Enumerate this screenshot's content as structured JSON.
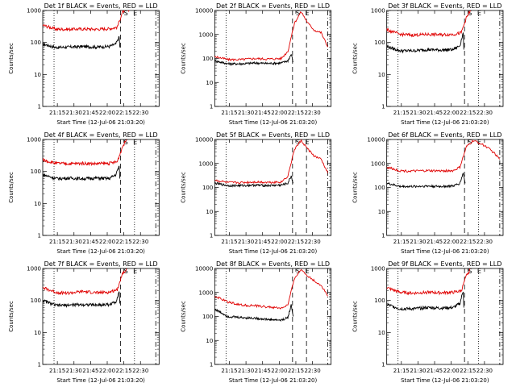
{
  "page": {
    "background": "#ffffff",
    "ink": "#000000",
    "events_color": "#000000",
    "lld_color": "#e00000"
  },
  "chart_data": [
    {
      "type": "line",
      "title": "Det 1f BLACK = Events, RED = LLD",
      "ylabel": "Counts/sec",
      "xlabel": "Start Time (12-Jul-06 21:03:20)",
      "yscale": "log",
      "ylim": [
        1,
        1000
      ],
      "xlim": [
        21.0,
        22.75
      ],
      "xticks": [
        "21:15",
        "21:30",
        "21:45",
        "22:00",
        "22:15",
        "22:30"
      ],
      "yticks": [
        "1",
        "10",
        "100",
        "1000"
      ],
      "flags": [
        "S",
        "E"
      ],
      "vlines": [
        {
          "x": 21.17,
          "style": "dotted"
        },
        {
          "x": 22.17,
          "style": "dashed"
        },
        {
          "x": 22.38,
          "style": "dotted"
        },
        {
          "x": 22.7,
          "style": "dashdot"
        }
      ],
      "series": [
        {
          "name": "Events",
          "color": "#000000",
          "x": [
            21.0,
            21.2,
            21.4,
            21.6,
            21.8,
            22.0,
            22.1,
            22.15,
            22.16
          ],
          "y": [
            90,
            70,
            72,
            75,
            72,
            75,
            90,
            150,
            70
          ]
        },
        {
          "name": "LLD",
          "color": "#e00000",
          "x": [
            21.0,
            21.2,
            21.4,
            21.6,
            21.8,
            22.0,
            22.12,
            22.2,
            22.26,
            22.3
          ],
          "y": [
            350,
            260,
            260,
            265,
            260,
            270,
            300,
            900,
            1000,
            1000
          ]
        }
      ]
    },
    {
      "type": "line",
      "title": "Det 2f BLACK = Events, RED = LLD",
      "ylabel": "Counts/sec",
      "xlabel": "Start Time (12-Jul-06 21:03:20)",
      "yscale": "log",
      "ylim": [
        1,
        10000
      ],
      "xlim": [
        21.0,
        22.75
      ],
      "xticks": [
        "21:15",
        "21:30",
        "21:45",
        "22:00",
        "22:15",
        "22:30"
      ],
      "yticks": [
        "1",
        "10",
        "100",
        "1000",
        "10000"
      ],
      "flags": [
        "S",
        "E"
      ],
      "vlines": [
        {
          "x": 21.17,
          "style": "dotted"
        },
        {
          "x": 22.17,
          "style": "dashed"
        },
        {
          "x": 22.38,
          "style": "dashed"
        },
        {
          "x": 22.7,
          "style": "dashdot"
        }
      ],
      "series": [
        {
          "name": "Events",
          "color": "#000000",
          "x": [
            21.0,
            21.2,
            21.4,
            21.6,
            21.8,
            22.0,
            22.1,
            22.15,
            22.18
          ],
          "y": [
            80,
            60,
            60,
            65,
            62,
            65,
            80,
            150,
            70
          ]
        },
        {
          "name": "LLD",
          "color": "#e00000",
          "x": [
            21.0,
            21.2,
            21.4,
            21.6,
            21.8,
            22.0,
            22.1,
            22.2,
            22.3,
            22.4,
            22.5,
            22.6,
            22.7
          ],
          "y": [
            120,
            90,
            90,
            100,
            95,
            100,
            200,
            3000,
            9000,
            3000,
            1500,
            1200,
            300
          ]
        }
      ]
    },
    {
      "type": "line",
      "title": "Det 3f BLACK = Events, RED = LLD",
      "ylabel": "Counts/sec",
      "xlabel": "Start Time (12-Jul-06 21:03:20)",
      "yscale": "log",
      "ylim": [
        1,
        1000
      ],
      "xlim": [
        21.0,
        22.75
      ],
      "xticks": [
        "21:15",
        "21:30",
        "21:45",
        "22:00",
        "22:15",
        "22:30"
      ],
      "yticks": [
        "1",
        "10",
        "100",
        "1000"
      ],
      "flags": [
        "S",
        "E"
      ],
      "vlines": [
        {
          "x": 21.17,
          "style": "dotted"
        },
        {
          "x": 22.17,
          "style": "dashed"
        },
        {
          "x": 22.38,
          "style": "dotted"
        },
        {
          "x": 22.7,
          "style": "dashdot"
        }
      ],
      "series": [
        {
          "name": "Events",
          "color": "#000000",
          "x": [
            21.0,
            21.2,
            21.4,
            21.6,
            21.8,
            22.0,
            22.1,
            22.15,
            22.16
          ],
          "y": [
            75,
            55,
            55,
            60,
            58,
            60,
            80,
            200,
            60
          ]
        },
        {
          "name": "LLD",
          "color": "#e00000",
          "x": [
            21.0,
            21.2,
            21.4,
            21.6,
            21.8,
            22.0,
            22.12,
            22.2,
            22.26
          ],
          "y": [
            250,
            180,
            170,
            180,
            175,
            180,
            200,
            600,
            1000
          ]
        }
      ]
    },
    {
      "type": "line",
      "title": "Det 4f BLACK = Events, RED = LLD",
      "ylabel": "Counts/sec",
      "xlabel": "Start Time (12-Jul-06 21:03:20)",
      "yscale": "log",
      "ylim": [
        1,
        1000
      ],
      "xlim": [
        21.0,
        22.75
      ],
      "xticks": [
        "21:15",
        "21:30",
        "21:45",
        "22:00",
        "22:15",
        "22:30"
      ],
      "yticks": [
        "1",
        "10",
        "100",
        "1000"
      ],
      "flags": [
        "S",
        "E"
      ],
      "vlines": [
        {
          "x": 21.17,
          "style": "dotted"
        },
        {
          "x": 22.17,
          "style": "dashed"
        },
        {
          "x": 22.38,
          "style": "dotted"
        },
        {
          "x": 22.7,
          "style": "dashdot"
        }
      ],
      "series": [
        {
          "name": "Events",
          "color": "#000000",
          "x": [
            21.0,
            21.2,
            21.4,
            21.6,
            21.8,
            22.0,
            22.1,
            22.15,
            22.16
          ],
          "y": [
            80,
            60,
            62,
            60,
            62,
            60,
            80,
            150,
            60
          ]
        },
        {
          "name": "LLD",
          "color": "#e00000",
          "x": [
            21.0,
            21.2,
            21.4,
            21.6,
            21.8,
            22.0,
            22.12,
            22.2,
            22.26
          ],
          "y": [
            230,
            180,
            175,
            180,
            175,
            180,
            200,
            600,
            1000
          ]
        }
      ]
    },
    {
      "type": "line",
      "title": "Det 5f BLACK = Events, RED = LLD",
      "ylabel": "Counts/sec",
      "xlabel": "Start Time (12-Jul-06 21:03:20)",
      "yscale": "log",
      "ylim": [
        1,
        10000
      ],
      "xlim": [
        21.0,
        22.75
      ],
      "xticks": [
        "21:15",
        "21:30",
        "21:45",
        "22:00",
        "22:15",
        "22:30"
      ],
      "yticks": [
        "1",
        "10",
        "100",
        "1000",
        "10000"
      ],
      "flags": [
        "S",
        "E"
      ],
      "vlines": [
        {
          "x": 21.17,
          "style": "dotted"
        },
        {
          "x": 22.17,
          "style": "dashed"
        },
        {
          "x": 22.38,
          "style": "dashed"
        },
        {
          "x": 22.7,
          "style": "dashdot"
        }
      ],
      "series": [
        {
          "name": "Events",
          "color": "#000000",
          "x": [
            21.0,
            21.2,
            21.4,
            21.6,
            21.8,
            22.0,
            22.1,
            22.15,
            22.18
          ],
          "y": [
            150,
            120,
            120,
            125,
            120,
            125,
            150,
            300,
            150
          ]
        },
        {
          "name": "LLD",
          "color": "#e00000",
          "x": [
            21.0,
            21.2,
            21.4,
            21.6,
            21.8,
            22.0,
            22.1,
            22.2,
            22.3,
            22.4,
            22.5,
            22.6,
            22.7
          ],
          "y": [
            200,
            160,
            160,
            170,
            165,
            170,
            300,
            4000,
            9000,
            4000,
            2000,
            1500,
            400
          ]
        }
      ]
    },
    {
      "type": "line",
      "title": "Det 6f BLACK = Events, RED = LLD",
      "ylabel": "Counts/sec",
      "xlabel": "Start Time (12-Jul-06 21:03:20)",
      "yscale": "log",
      "ylim": [
        1,
        10000
      ],
      "xlim": [
        21.0,
        22.75
      ],
      "xticks": [
        "21:15",
        "21:30",
        "21:45",
        "22:00",
        "22:15",
        "22:30"
      ],
      "yticks": [
        "1",
        "10",
        "100",
        "1000",
        "10000"
      ],
      "flags": [
        "S",
        "E"
      ],
      "vlines": [
        {
          "x": 21.17,
          "style": "dotted"
        },
        {
          "x": 22.17,
          "style": "dashed"
        },
        {
          "x": 22.38,
          "style": "dotted"
        },
        {
          "x": 22.7,
          "style": "dashdot"
        }
      ],
      "series": [
        {
          "name": "Events",
          "color": "#000000",
          "x": [
            21.0,
            21.2,
            21.4,
            21.6,
            21.8,
            22.0,
            22.1,
            22.15,
            22.18
          ],
          "y": [
            150,
            110,
            110,
            115,
            110,
            115,
            150,
            400,
            150
          ]
        },
        {
          "name": "LLD",
          "color": "#e00000",
          "x": [
            21.0,
            21.2,
            21.4,
            21.6,
            21.8,
            22.0,
            22.1,
            22.2,
            22.3,
            22.4,
            22.5,
            22.6,
            22.7
          ],
          "y": [
            700,
            500,
            480,
            500,
            490,
            500,
            700,
            5000,
            9000,
            7000,
            5000,
            3000,
            1500
          ]
        }
      ]
    },
    {
      "type": "line",
      "title": "Det 7f BLACK = Events, RED = LLD",
      "ylabel": "Counts/sec",
      "xlabel": "Start Time (12-Jul-06 21:03:20)",
      "yscale": "log",
      "ylim": [
        1,
        1000
      ],
      "xlim": [
        21.0,
        22.75
      ],
      "xticks": [
        "21:15",
        "21:30",
        "21:45",
        "22:00",
        "22:15",
        "22:30"
      ],
      "yticks": [
        "1",
        "10",
        "100",
        "1000"
      ],
      "flags": [
        "S",
        "E"
      ],
      "vlines": [
        {
          "x": 21.17,
          "style": "dotted"
        },
        {
          "x": 22.17,
          "style": "dashed"
        },
        {
          "x": 22.38,
          "style": "dotted"
        },
        {
          "x": 22.7,
          "style": "dashdot"
        }
      ],
      "series": [
        {
          "name": "Events",
          "color": "#000000",
          "x": [
            21.0,
            21.2,
            21.4,
            21.6,
            21.8,
            22.0,
            22.1,
            22.15,
            22.16
          ],
          "y": [
            100,
            70,
            72,
            75,
            72,
            75,
            90,
            200,
            80
          ]
        },
        {
          "name": "LLD",
          "color": "#e00000",
          "x": [
            21.0,
            21.2,
            21.4,
            21.6,
            21.8,
            22.0,
            22.12,
            22.2,
            22.26
          ],
          "y": [
            250,
            180,
            170,
            190,
            175,
            180,
            220,
            700,
            1000
          ]
        }
      ]
    },
    {
      "type": "line",
      "title": "Det 8f BLACK = Events, RED = LLD",
      "ylabel": "Counts/sec",
      "xlabel": "Start Time (12-Jul-06 21:03:20)",
      "yscale": "log",
      "ylim": [
        1,
        10000
      ],
      "xlim": [
        21.0,
        22.75
      ],
      "xticks": [
        "21:15",
        "21:30",
        "21:45",
        "22:00",
        "22:15",
        "22:30"
      ],
      "yticks": [
        "1",
        "10",
        "100",
        "1000",
        "10000"
      ],
      "flags": [
        "S",
        "E"
      ],
      "vlines": [
        {
          "x": 21.17,
          "style": "dotted"
        },
        {
          "x": 22.17,
          "style": "dashed"
        },
        {
          "x": 22.38,
          "style": "dashed"
        },
        {
          "x": 22.7,
          "style": "dashdot"
        }
      ],
      "series": [
        {
          "name": "Events",
          "color": "#000000",
          "x": [
            21.0,
            21.2,
            21.4,
            21.6,
            21.8,
            22.0,
            22.1,
            22.15,
            22.18
          ],
          "y": [
            200,
            100,
            90,
            85,
            75,
            70,
            90,
            300,
            100
          ]
        },
        {
          "name": "LLD",
          "color": "#e00000",
          "x": [
            21.0,
            21.2,
            21.4,
            21.6,
            21.8,
            22.0,
            22.1,
            22.2,
            22.3,
            22.4,
            22.5,
            22.6,
            22.7
          ],
          "y": [
            700,
            400,
            300,
            280,
            250,
            220,
            300,
            4000,
            9000,
            5000,
            3000,
            2000,
            700
          ]
        }
      ]
    },
    {
      "type": "line",
      "title": "Det 9f BLACK = Events, RED = LLD",
      "ylabel": "Counts/sec",
      "xlabel": "Start Time (12-Jul-06 21:03:20)",
      "yscale": "log",
      "ylim": [
        1,
        1000
      ],
      "xlim": [
        21.0,
        22.75
      ],
      "xticks": [
        "21:15",
        "21:30",
        "21:45",
        "22:00",
        "22:15",
        "22:30"
      ],
      "yticks": [
        "1",
        "10",
        "100",
        "1000"
      ],
      "flags": [
        "S",
        "E"
      ],
      "vlines": [
        {
          "x": 21.17,
          "style": "dotted"
        },
        {
          "x": 22.17,
          "style": "dashed"
        },
        {
          "x": 22.38,
          "style": "dotted"
        },
        {
          "x": 22.7,
          "style": "dashdot"
        }
      ],
      "series": [
        {
          "name": "Events",
          "color": "#000000",
          "x": [
            21.0,
            21.2,
            21.4,
            21.6,
            21.8,
            22.0,
            22.1,
            22.15,
            22.16
          ],
          "y": [
            75,
            55,
            55,
            60,
            58,
            60,
            80,
            200,
            60
          ]
        },
        {
          "name": "LLD",
          "color": "#e00000",
          "x": [
            21.0,
            21.2,
            21.4,
            21.6,
            21.8,
            22.0,
            22.12,
            22.2,
            22.26
          ],
          "y": [
            250,
            180,
            170,
            180,
            175,
            180,
            200,
            600,
            1000
          ]
        }
      ]
    }
  ]
}
